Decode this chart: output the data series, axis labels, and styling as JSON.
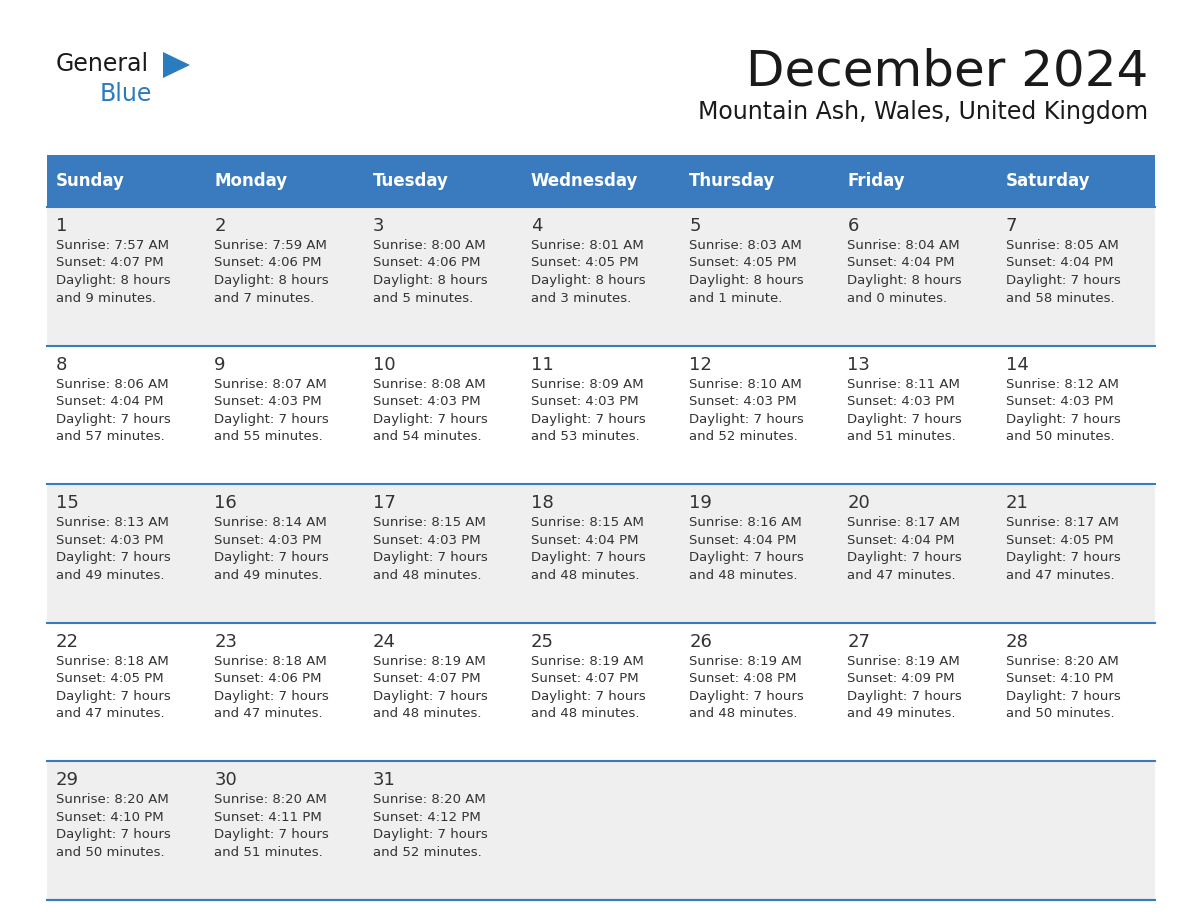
{
  "title": "December 2024",
  "subtitle": "Mountain Ash, Wales, United Kingdom",
  "header_bg_color": "#3a7bbf",
  "header_text_color": "#ffffff",
  "cell_bg_color_odd": "#efefef",
  "cell_bg_color_even": "#ffffff",
  "border_color": "#3a7bbf",
  "text_color": "#333333",
  "days_of_week": [
    "Sunday",
    "Monday",
    "Tuesday",
    "Wednesday",
    "Thursday",
    "Friday",
    "Saturday"
  ],
  "logo_general_color": "#1a1a1a",
  "logo_blue_color": "#2b7bbf",
  "logo_triangle_color": "#2b7bbf",
  "weeks": [
    [
      {
        "day": "1",
        "sunrise": "7:57 AM",
        "sunset": "4:07 PM",
        "daylight_h": "8 hours",
        "daylight_m": "and 9 minutes."
      },
      {
        "day": "2",
        "sunrise": "7:59 AM",
        "sunset": "4:06 PM",
        "daylight_h": "8 hours",
        "daylight_m": "and 7 minutes."
      },
      {
        "day": "3",
        "sunrise": "8:00 AM",
        "sunset": "4:06 PM",
        "daylight_h": "8 hours",
        "daylight_m": "and 5 minutes."
      },
      {
        "day": "4",
        "sunrise": "8:01 AM",
        "sunset": "4:05 PM",
        "daylight_h": "8 hours",
        "daylight_m": "and 3 minutes."
      },
      {
        "day": "5",
        "sunrise": "8:03 AM",
        "sunset": "4:05 PM",
        "daylight_h": "8 hours",
        "daylight_m": "and 1 minute."
      },
      {
        "day": "6",
        "sunrise": "8:04 AM",
        "sunset": "4:04 PM",
        "daylight_h": "8 hours",
        "daylight_m": "and 0 minutes."
      },
      {
        "day": "7",
        "sunrise": "8:05 AM",
        "sunset": "4:04 PM",
        "daylight_h": "7 hours",
        "daylight_m": "and 58 minutes."
      }
    ],
    [
      {
        "day": "8",
        "sunrise": "8:06 AM",
        "sunset": "4:04 PM",
        "daylight_h": "7 hours",
        "daylight_m": "and 57 minutes."
      },
      {
        "day": "9",
        "sunrise": "8:07 AM",
        "sunset": "4:03 PM",
        "daylight_h": "7 hours",
        "daylight_m": "and 55 minutes."
      },
      {
        "day": "10",
        "sunrise": "8:08 AM",
        "sunset": "4:03 PM",
        "daylight_h": "7 hours",
        "daylight_m": "and 54 minutes."
      },
      {
        "day": "11",
        "sunrise": "8:09 AM",
        "sunset": "4:03 PM",
        "daylight_h": "7 hours",
        "daylight_m": "and 53 minutes."
      },
      {
        "day": "12",
        "sunrise": "8:10 AM",
        "sunset": "4:03 PM",
        "daylight_h": "7 hours",
        "daylight_m": "and 52 minutes."
      },
      {
        "day": "13",
        "sunrise": "8:11 AM",
        "sunset": "4:03 PM",
        "daylight_h": "7 hours",
        "daylight_m": "and 51 minutes."
      },
      {
        "day": "14",
        "sunrise": "8:12 AM",
        "sunset": "4:03 PM",
        "daylight_h": "7 hours",
        "daylight_m": "and 50 minutes."
      }
    ],
    [
      {
        "day": "15",
        "sunrise": "8:13 AM",
        "sunset": "4:03 PM",
        "daylight_h": "7 hours",
        "daylight_m": "and 49 minutes."
      },
      {
        "day": "16",
        "sunrise": "8:14 AM",
        "sunset": "4:03 PM",
        "daylight_h": "7 hours",
        "daylight_m": "and 49 minutes."
      },
      {
        "day": "17",
        "sunrise": "8:15 AM",
        "sunset": "4:03 PM",
        "daylight_h": "7 hours",
        "daylight_m": "and 48 minutes."
      },
      {
        "day": "18",
        "sunrise": "8:15 AM",
        "sunset": "4:04 PM",
        "daylight_h": "7 hours",
        "daylight_m": "and 48 minutes."
      },
      {
        "day": "19",
        "sunrise": "8:16 AM",
        "sunset": "4:04 PM",
        "daylight_h": "7 hours",
        "daylight_m": "and 48 minutes."
      },
      {
        "day": "20",
        "sunrise": "8:17 AM",
        "sunset": "4:04 PM",
        "daylight_h": "7 hours",
        "daylight_m": "and 47 minutes."
      },
      {
        "day": "21",
        "sunrise": "8:17 AM",
        "sunset": "4:05 PM",
        "daylight_h": "7 hours",
        "daylight_m": "and 47 minutes."
      }
    ],
    [
      {
        "day": "22",
        "sunrise": "8:18 AM",
        "sunset": "4:05 PM",
        "daylight_h": "7 hours",
        "daylight_m": "and 47 minutes."
      },
      {
        "day": "23",
        "sunrise": "8:18 AM",
        "sunset": "4:06 PM",
        "daylight_h": "7 hours",
        "daylight_m": "and 47 minutes."
      },
      {
        "day": "24",
        "sunrise": "8:19 AM",
        "sunset": "4:07 PM",
        "daylight_h": "7 hours",
        "daylight_m": "and 48 minutes."
      },
      {
        "day": "25",
        "sunrise": "8:19 AM",
        "sunset": "4:07 PM",
        "daylight_h": "7 hours",
        "daylight_m": "and 48 minutes."
      },
      {
        "day": "26",
        "sunrise": "8:19 AM",
        "sunset": "4:08 PM",
        "daylight_h": "7 hours",
        "daylight_m": "and 48 minutes."
      },
      {
        "day": "27",
        "sunrise": "8:19 AM",
        "sunset": "4:09 PM",
        "daylight_h": "7 hours",
        "daylight_m": "and 49 minutes."
      },
      {
        "day": "28",
        "sunrise": "8:20 AM",
        "sunset": "4:10 PM",
        "daylight_h": "7 hours",
        "daylight_m": "and 50 minutes."
      }
    ],
    [
      {
        "day": "29",
        "sunrise": "8:20 AM",
        "sunset": "4:10 PM",
        "daylight_h": "7 hours",
        "daylight_m": "and 50 minutes."
      },
      {
        "day": "30",
        "sunrise": "8:20 AM",
        "sunset": "4:11 PM",
        "daylight_h": "7 hours",
        "daylight_m": "and 51 minutes."
      },
      {
        "day": "31",
        "sunrise": "8:20 AM",
        "sunset": "4:12 PM",
        "daylight_h": "7 hours",
        "daylight_m": "and 52 minutes."
      },
      null,
      null,
      null,
      null
    ]
  ]
}
